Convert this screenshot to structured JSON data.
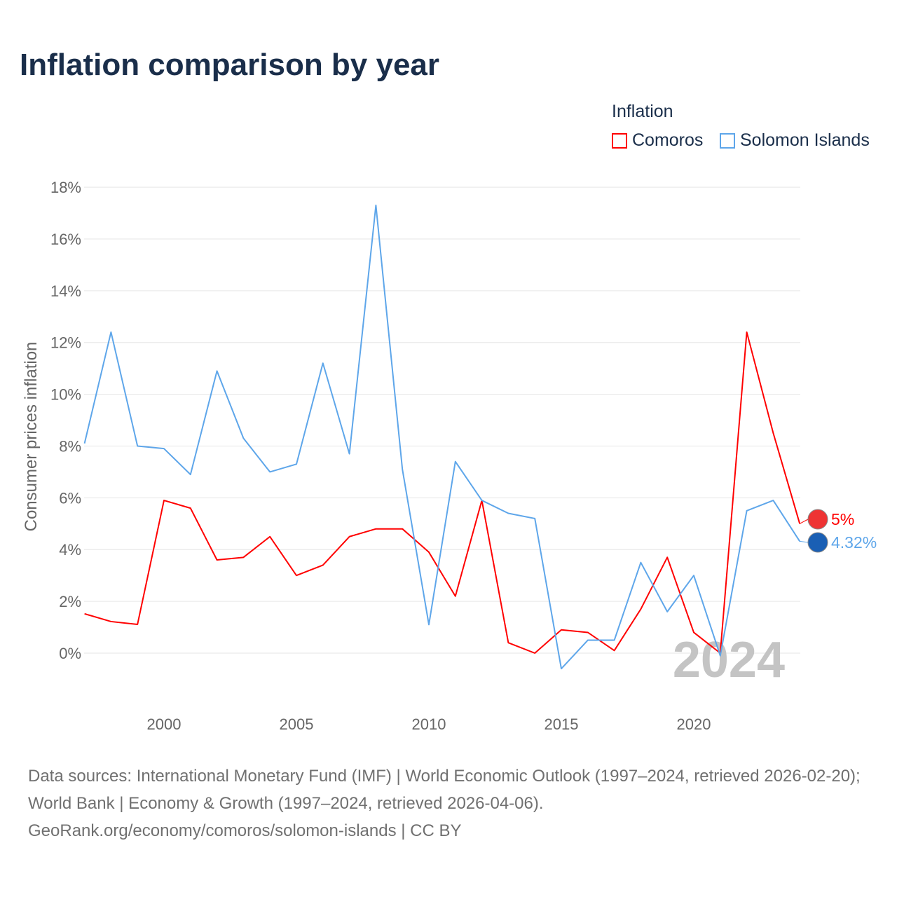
{
  "chart_data": {
    "type": "line",
    "title": "Inflation comparison by year",
    "legend_title": "Inflation",
    "legend_position": "top-right",
    "ylabel": "Consumer prices inflation",
    "xlabel": "",
    "ylim": [
      -2,
      18
    ],
    "yticks": [
      0,
      2,
      4,
      6,
      8,
      10,
      12,
      14,
      16,
      18
    ],
    "ytick_labels": [
      "0%",
      "2%",
      "4%",
      "6%",
      "8%",
      "10%",
      "12%",
      "14%",
      "16%",
      "18%"
    ],
    "xticks": [
      2000,
      2005,
      2010,
      2015,
      2020
    ],
    "xtick_labels": [
      "2000",
      "2005",
      "2010",
      "2015",
      "2020"
    ],
    "xlim": [
      1997,
      2024
    ],
    "grid": true,
    "year_watermark": "2024",
    "x": [
      1997,
      1998,
      1999,
      2000,
      2001,
      2002,
      2003,
      2004,
      2005,
      2006,
      2007,
      2008,
      2009,
      2010,
      2011,
      2012,
      2013,
      2014,
      2015,
      2016,
      2017,
      2018,
      2019,
      2020,
      2021,
      2022,
      2023,
      2024
    ],
    "series": [
      {
        "name": "Comoros",
        "color": "#ff0000",
        "end_label": "5%",
        "values": [
          1.52,
          1.22,
          1.11,
          5.9,
          5.6,
          3.6,
          3.7,
          4.5,
          3.0,
          3.4,
          4.5,
          4.8,
          4.8,
          3.9,
          2.2,
          5.9,
          0.4,
          0.0,
          0.9,
          0.8,
          0.1,
          1.7,
          3.7,
          0.8,
          0.0,
          12.4,
          8.5,
          5.0
        ]
      },
      {
        "name": "Solomon Islands",
        "color": "#5ea6ea",
        "end_label": "4.32%",
        "values": [
          8.1,
          12.4,
          8.0,
          7.9,
          6.9,
          10.9,
          8.3,
          7.0,
          7.3,
          11.2,
          7.7,
          17.3,
          7.1,
          1.1,
          7.4,
          5.9,
          5.4,
          5.2,
          -0.6,
          0.5,
          0.5,
          3.5,
          1.6,
          3.0,
          -0.1,
          5.5,
          5.9,
          4.32
        ]
      }
    ]
  },
  "footer": {
    "sources": "Data sources: International Monetary Fund (IMF) | World Economic Outlook (1997–2024, retrieved 2026-02-20); World Bank | Economy & Growth (1997–2024, retrieved 2026-04-06).",
    "link": "GeoRank.org/economy/comoros/solomon-islands | CC BY"
  }
}
